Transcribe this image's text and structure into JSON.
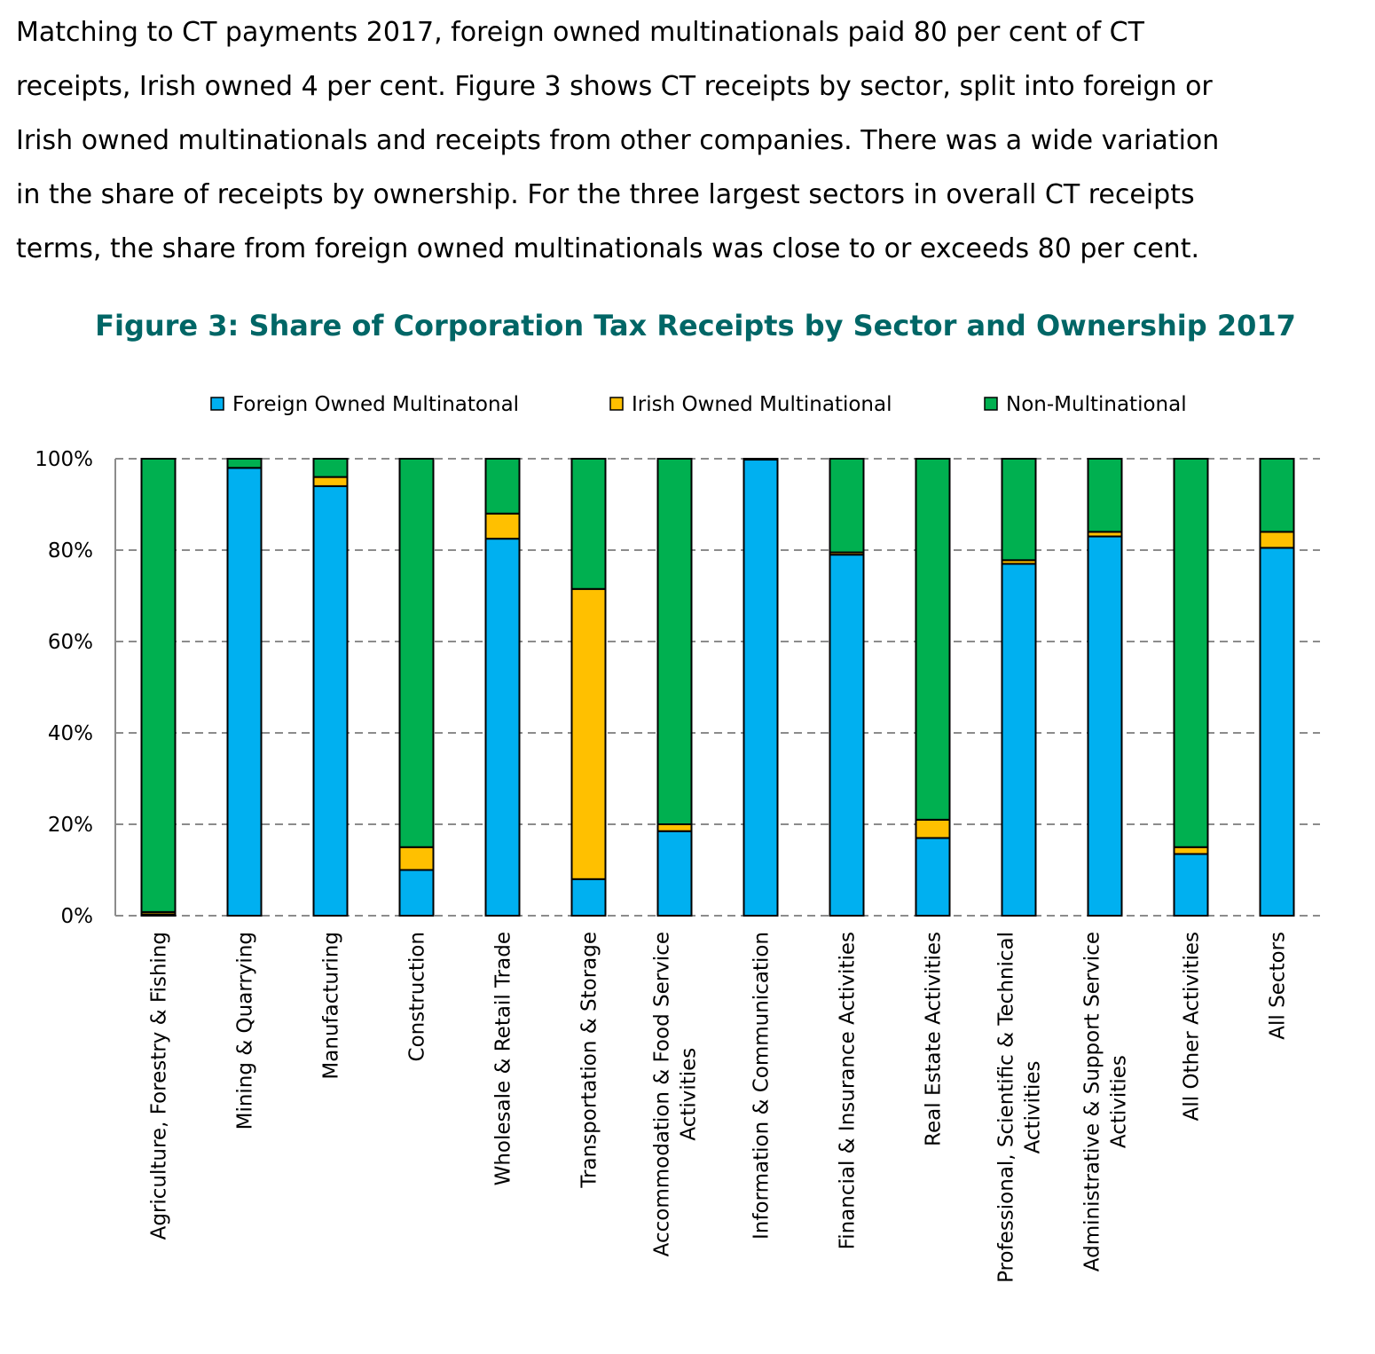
{
  "intro": {
    "lines": [
      "Matching to CT payments 2017, foreign owned multinationals paid 80 per cent of CT",
      "receipts, Irish owned 4 per cent. Figure 3 shows CT receipts by sector, split into foreign or",
      "Irish owned multinationals and receipts from other companies. There was a wide variation",
      "in the share of receipts by ownership. For the three largest sectors in overall CT receipts",
      "terms, the share from foreign owned multinationals was close to or exceeds 80 per cent."
    ]
  },
  "chart_data": {
    "type": "bar",
    "stacked": true,
    "title": "Figure 3: Share of Corporation Tax Receipts by Sector and Ownership 2017",
    "xlabel": "",
    "ylabel": "",
    "ylim": [
      0,
      100
    ],
    "y_ticks": [
      "0%",
      "20%",
      "40%",
      "60%",
      "80%",
      "100%"
    ],
    "y_tick_values": [
      0,
      20,
      40,
      60,
      80,
      100
    ],
    "grid": "horizontal dashed",
    "legend_position": "top",
    "categories": [
      [
        "Agriculture, Forestry & Fishing"
      ],
      [
        "Mining & Quarrying"
      ],
      [
        "Manufacturing"
      ],
      [
        "Construction"
      ],
      [
        "Wholesale & Retail Trade"
      ],
      [
        "Transportation & Storage"
      ],
      [
        "Accommodation & Food Service",
        "Activities"
      ],
      [
        "Information & Communication"
      ],
      [
        "Financial & Insurance Activities"
      ],
      [
        "Real Estate Activities"
      ],
      [
        "Professional, Scientific & Technical",
        "Activities"
      ],
      [
        "Administrative & Support Service",
        "Activities"
      ],
      [
        "All Other Activities"
      ],
      [
        "All Sectors"
      ]
    ],
    "series": [
      {
        "name": "Foreign Owned Multinatonal",
        "color": "#00B0F0",
        "values": [
          0.3,
          98,
          94,
          10,
          82.5,
          8,
          18.5,
          99.8,
          79,
          17,
          77,
          83,
          13.5,
          80.5
        ]
      },
      {
        "name": "Irish Owned Multinational",
        "color": "#FFC000",
        "values": [
          0.5,
          0,
          2,
          5,
          5.5,
          63.5,
          1.5,
          0,
          0.5,
          4,
          0.8,
          1,
          1.5,
          3.5
        ]
      },
      {
        "name": "Non-Multinational",
        "color": "#00B050",
        "values": [
          99.2,
          2,
          4,
          85,
          12,
          28.5,
          80,
          0.2,
          20.5,
          79,
          22.2,
          16,
          85,
          16
        ]
      }
    ]
  }
}
